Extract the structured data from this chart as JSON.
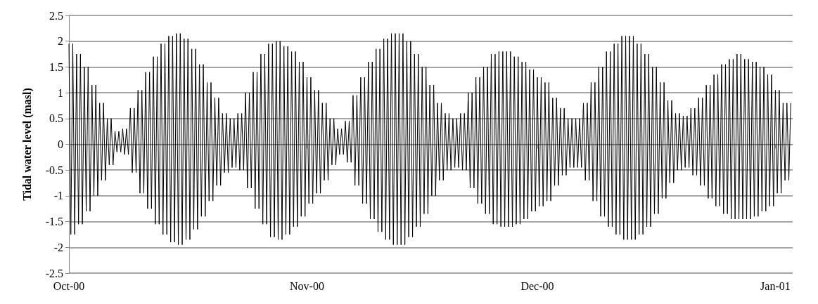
{
  "chart_data": {
    "type": "line",
    "ylabel": "Tidal water level (masl)",
    "xlim": [
      "2000-10-01T00:00",
      "2001-01-03T06:00"
    ],
    "xticks": [
      {
        "value": "2000-10-01",
        "label": "Oct-00"
      },
      {
        "value": "2000-11-01",
        "label": "Nov-00"
      },
      {
        "value": "2000-12-01",
        "label": "Dec-00"
      },
      {
        "value": "2001-01-01",
        "label": "Jan-01"
      }
    ],
    "ylim": [
      -2.5,
      2.5
    ],
    "yticks": [
      -2.5,
      -2,
      -1.5,
      -1,
      -0.5,
      0,
      0.5,
      1,
      1.5,
      2,
      2.5
    ],
    "grid": "y",
    "marker": "none",
    "line_style": "solid",
    "x": [
      "2000-10-01T00:00",
      "2000-10-01T06:00",
      "2000-10-01T12:00",
      "2000-10-01T18:00",
      "2000-10-02T00:00",
      "2000-10-02T06:00",
      "2000-10-02T12:00",
      "2000-10-02T18:00",
      "2000-10-03T00:00",
      "2000-10-03T06:00",
      "2000-10-03T12:00",
      "2000-10-03T18:00",
      "2000-10-04T00:00",
      "2000-10-04T06:00",
      "2000-10-04T12:00",
      "2000-10-04T18:00",
      "2000-10-05T00:00",
      "2000-10-05T06:00",
      "2000-10-05T12:00",
      "2000-10-05T18:00",
      "2000-10-06T00:00",
      "2000-10-06T06:00",
      "2000-10-06T12:00",
      "2000-10-06T18:00",
      "2000-10-07T00:00",
      "2000-10-07T06:00",
      "2000-10-07T12:00",
      "2000-10-07T18:00",
      "2000-10-08T00:00",
      "2000-10-08T06:00",
      "2000-10-08T12:00",
      "2000-10-08T18:00",
      "2000-10-09T00:00",
      "2000-10-09T06:00",
      "2000-10-09T12:00",
      "2000-10-09T18:00",
      "2000-10-10T00:00",
      "2000-10-10T06:00",
      "2000-10-10T12:00",
      "2000-10-10T18:00",
      "2000-10-11T00:00",
      "2000-10-11T06:00",
      "2000-10-11T12:00",
      "2000-10-11T18:00",
      "2000-10-12T00:00",
      "2000-10-12T06:00",
      "2000-10-12T12:00",
      "2000-10-12T18:00",
      "2000-10-13T00:00",
      "2000-10-13T06:00",
      "2000-10-13T12:00",
      "2000-10-13T18:00",
      "2000-10-14T00:00",
      "2000-10-14T06:00",
      "2000-10-14T12:00",
      "2000-10-14T18:00",
      "2000-10-15T00:00",
      "2000-10-15T06:00",
      "2000-10-15T12:00",
      "2000-10-15T18:00",
      "2000-10-16T00:00",
      "2000-10-16T06:00",
      "2000-10-16T12:00",
      "2000-10-16T18:00",
      "2000-10-17T00:00",
      "2000-10-17T06:00",
      "2000-10-17T12:00",
      "2000-10-17T18:00",
      "2000-10-18T00:00",
      "2000-10-18T06:00",
      "2000-10-18T12:00",
      "2000-10-18T18:00",
      "2000-10-19T00:00",
      "2000-10-19T06:00",
      "2000-10-19T12:00",
      "2000-10-19T18:00",
      "2000-10-20T00:00",
      "2000-10-20T06:00",
      "2000-10-20T12:00",
      "2000-10-20T18:00",
      "2000-10-21T00:00",
      "2000-10-21T06:00",
      "2000-10-21T12:00",
      "2000-10-21T18:00",
      "2000-10-22T00:00",
      "2000-10-22T06:00",
      "2000-10-22T12:00",
      "2000-10-22T18:00",
      "2000-10-23T00:00",
      "2000-10-23T06:00",
      "2000-10-23T12:00",
      "2000-10-23T18:00",
      "2000-10-24T00:00",
      "2000-10-24T06:00",
      "2000-10-24T12:00",
      "2000-10-24T18:00",
      "2000-10-25T00:00",
      "2000-10-25T06:00",
      "2000-10-25T12:00",
      "2000-10-25T18:00",
      "2000-10-26T00:00",
      "2000-10-26T06:00",
      "2000-10-26T12:00",
      "2000-10-26T18:00",
      "2000-10-27T00:00",
      "2000-10-27T06:00",
      "2000-10-27T12:00",
      "2000-10-27T18:00",
      "2000-10-28T00:00",
      "2000-10-28T06:00",
      "2000-10-28T12:00",
      "2000-10-28T18:00",
      "2000-10-29T00:00",
      "2000-10-29T06:00",
      "2000-10-29T12:00",
      "2000-10-29T18:00",
      "2000-10-30T00:00",
      "2000-10-30T06:00",
      "2000-10-30T12:00",
      "2000-10-30T18:00",
      "2000-10-31T00:00",
      "2000-10-31T06:00",
      "2000-10-31T12:00",
      "2000-10-31T18:00",
      "2000-11-01T00:00",
      "2000-11-01T06:00",
      "2000-11-01T12:00",
      "2000-11-01T18:00",
      "2000-11-02T00:00",
      "2000-11-02T06:00",
      "2000-11-02T12:00",
      "2000-11-02T18:00",
      "2000-11-03T00:00",
      "2000-11-03T06:00",
      "2000-11-03T12:00",
      "2000-11-03T18:00",
      "2000-11-04T00:00",
      "2000-11-04T06:00",
      "2000-11-04T12:00",
      "2000-11-04T18:00",
      "2000-11-05T00:00",
      "2000-11-05T06:00",
      "2000-11-05T12:00",
      "2000-11-05T18:00",
      "2000-11-06T00:00",
      "2000-11-06T06:00",
      "2000-11-06T12:00",
      "2000-11-06T18:00",
      "2000-11-07T00:00",
      "2000-11-07T06:00",
      "2000-11-07T12:00",
      "2000-11-07T18:00",
      "2000-11-08T00:00",
      "2000-11-08T06:00",
      "2000-11-08T12:00",
      "2000-11-08T18:00",
      "2000-11-09T00:00",
      "2000-11-09T06:00",
      "2000-11-09T12:00",
      "2000-11-09T18:00",
      "2000-11-10T00:00",
      "2000-11-10T06:00",
      "2000-11-10T12:00",
      "2000-11-10T18:00",
      "2000-11-11T00:00",
      "2000-11-11T06:00",
      "2000-11-11T12:00",
      "2000-11-11T18:00",
      "2000-11-12T00:00",
      "2000-11-12T06:00",
      "2000-11-12T12:00",
      "2000-11-12T18:00",
      "2000-11-13T00:00",
      "2000-11-13T06:00",
      "2000-11-13T12:00",
      "2000-11-13T18:00",
      "2000-11-14T00:00",
      "2000-11-14T06:00",
      "2000-11-14T12:00",
      "2000-11-14T18:00",
      "2000-11-15T00:00",
      "2000-11-15T06:00",
      "2000-11-15T12:00",
      "2000-11-15T18:00",
      "2000-11-16T00:00",
      "2000-11-16T06:00",
      "2000-11-16T12:00",
      "2000-11-16T18:00",
      "2000-11-17T00:00",
      "2000-11-17T06:00",
      "2000-11-17T12:00",
      "2000-11-17T18:00",
      "2000-11-18T00:00",
      "2000-11-18T06:00",
      "2000-11-18T12:00",
      "2000-11-18T18:00",
      "2000-11-19T00:00",
      "2000-11-19T06:00",
      "2000-11-19T12:00",
      "2000-11-19T18:00",
      "2000-11-20T00:00",
      "2000-11-20T06:00",
      "2000-11-20T12:00",
      "2000-11-20T18:00",
      "2000-11-21T00:00",
      "2000-11-21T06:00",
      "2000-11-21T12:00",
      "2000-11-21T18:00",
      "2000-11-22T00:00",
      "2000-11-22T06:00",
      "2000-11-22T12:00",
      "2000-11-22T18:00",
      "2000-11-23T00:00",
      "2000-11-23T06:00",
      "2000-11-23T12:00",
      "2000-11-23T18:00",
      "2000-11-24T00:00",
      "2000-11-24T06:00",
      "2000-11-24T12:00",
      "2000-11-24T18:00",
      "2000-11-25T00:00",
      "2000-11-25T06:00",
      "2000-11-25T12:00",
      "2000-11-25T18:00",
      "2000-11-26T00:00",
      "2000-11-26T06:00",
      "2000-11-26T12:00",
      "2000-11-26T18:00",
      "2000-11-27T00:00",
      "2000-11-27T06:00",
      "2000-11-27T12:00",
      "2000-11-27T18:00",
      "2000-11-28T00:00",
      "2000-11-28T06:00",
      "2000-11-28T12:00",
      "2000-11-28T18:00",
      "2000-11-29T00:00",
      "2000-11-29T06:00",
      "2000-11-29T12:00",
      "2000-11-29T18:00",
      "2000-11-30T00:00",
      "2000-11-30T06:00",
      "2000-11-30T12:00",
      "2000-11-30T18:00",
      "2000-12-01T00:00",
      "2000-12-01T06:00",
      "2000-12-01T12:00",
      "2000-12-01T18:00",
      "2000-12-02T00:00",
      "2000-12-02T06:00",
      "2000-12-02T12:00",
      "2000-12-02T18:00",
      "2000-12-03T00:00",
      "2000-12-03T06:00",
      "2000-12-03T12:00",
      "2000-12-03T18:00",
      "2000-12-04T00:00",
      "2000-12-04T06:00",
      "2000-12-04T12:00",
      "2000-12-04T18:00",
      "2000-12-05T00:00",
      "2000-12-05T06:00",
      "2000-12-05T12:00",
      "2000-12-05T18:00",
      "2000-12-06T00:00",
      "2000-12-06T06:00",
      "2000-12-06T12:00",
      "2000-12-06T18:00",
      "2000-12-07T00:00",
      "2000-12-07T06:00",
      "2000-12-07T12:00",
      "2000-12-07T18:00",
      "2000-12-08T00:00",
      "2000-12-08T06:00",
      "2000-12-08T12:00",
      "2000-12-08T18:00",
      "2000-12-09T00:00",
      "2000-12-09T06:00",
      "2000-12-09T12:00",
      "2000-12-09T18:00",
      "2000-12-10T00:00",
      "2000-12-10T06:00",
      "2000-12-10T12:00",
      "2000-12-10T18:00",
      "2000-12-11T00:00",
      "2000-12-11T06:00",
      "2000-12-11T12:00",
      "2000-12-11T18:00",
      "2000-12-12T00:00",
      "2000-12-12T06:00",
      "2000-12-12T12:00",
      "2000-12-12T18:00",
      "2000-12-13T00:00",
      "2000-12-13T06:00",
      "2000-12-13T12:00",
      "2000-12-13T18:00",
      "2000-12-14T00:00",
      "2000-12-14T06:00",
      "2000-12-14T12:00",
      "2000-12-14T18:00",
      "2000-12-15T00:00",
      "2000-12-15T06:00",
      "2000-12-15T12:00",
      "2000-12-15T18:00",
      "2000-12-16T00:00",
      "2000-12-16T06:00",
      "2000-12-16T12:00",
      "2000-12-16T18:00",
      "2000-12-17T00:00",
      "2000-12-17T06:00",
      "2000-12-17T12:00",
      "2000-12-17T18:00",
      "2000-12-18T00:00",
      "2000-12-18T06:00",
      "2000-12-18T12:00",
      "2000-12-18T18:00",
      "2000-12-19T00:00",
      "2000-12-19T06:00",
      "2000-12-19T12:00",
      "2000-12-19T18:00",
      "2000-12-20T00:00",
      "2000-12-20T06:00",
      "2000-12-20T12:00",
      "2000-12-20T18:00",
      "2000-12-21T00:00",
      "2000-12-21T06:00",
      "2000-12-21T12:00",
      "2000-12-21T18:00",
      "2000-12-22T00:00",
      "2000-12-22T06:00",
      "2000-12-22T12:00",
      "2000-12-22T18:00",
      "2000-12-23T00:00",
      "2000-12-23T06:00",
      "2000-12-23T12:00",
      "2000-12-23T18:00",
      "2000-12-24T00:00",
      "2000-12-24T06:00",
      "2000-12-24T12:00",
      "2000-12-24T18:00",
      "2000-12-25T00:00",
      "2000-12-25T06:00",
      "2000-12-25T12:00",
      "2000-12-25T18:00",
      "2000-12-26T00:00",
      "2000-12-26T06:00",
      "2000-12-26T12:00",
      "2000-12-26T18:00",
      "2000-12-27T00:00",
      "2000-12-27T06:00",
      "2000-12-27T12:00",
      "2000-12-27T18:00",
      "2000-12-28T00:00",
      "2000-12-28T06:00",
      "2000-12-28T12:00",
      "2000-12-28T18:00",
      "2000-12-29T00:00",
      "2000-12-29T06:00",
      "2000-12-29T12:00",
      "2000-12-29T18:00",
      "2000-12-30T00:00",
      "2000-12-30T06:00",
      "2000-12-30T12:00",
      "2000-12-30T18:00",
      "2000-12-31T00:00",
      "2000-12-31T06:00",
      "2000-12-31T12:00",
      "2000-12-31T18:00",
      "2001-01-01T00:00",
      "2001-01-01T06:00",
      "2001-01-01T12:00",
      "2001-01-01T18:00",
      "2001-01-02T00:00",
      "2001-01-02T06:00",
      "2001-01-02T12:00",
      "2001-01-02T18:00",
      "2001-01-03T00:00"
    ],
    "series": [
      {
        "color": "#000000",
        "values": [
          1.95,
          -1.75,
          1.95,
          -1.75,
          1.75,
          -1.55,
          1.75,
          -1.55,
          1.5,
          -1.3,
          1.5,
          -1.3,
          1.15,
          -1.0,
          1.15,
          -1.0,
          0.8,
          -0.7,
          0.8,
          -0.7,
          0.5,
          -0.4,
          0.5,
          -0.4,
          0.25,
          -0.15,
          0.25,
          -0.15,
          0.3,
          -0.2,
          0.3,
          -0.2,
          0.7,
          -0.55,
          0.7,
          -0.55,
          1.05,
          -0.95,
          1.05,
          -0.95,
          1.4,
          -1.25,
          1.4,
          -1.25,
          1.7,
          -1.55,
          1.7,
          -1.55,
          1.95,
          -1.75,
          1.95,
          -1.75,
          2.1,
          -1.9,
          2.1,
          -1.9,
          2.15,
          -1.95,
          2.15,
          -1.95,
          2.05,
          -1.85,
          2.05,
          -1.85,
          1.85,
          -1.65,
          1.85,
          -1.65,
          1.55,
          -1.4,
          1.55,
          -1.4,
          1.2,
          -1.1,
          1.2,
          -1.1,
          0.9,
          -0.8,
          0.9,
          -0.8,
          0.6,
          -0.55,
          0.6,
          -0.55,
          0.5,
          -0.45,
          0.5,
          -0.45,
          0.6,
          -0.5,
          0.6,
          -0.5,
          1.0,
          -0.85,
          1.0,
          -0.85,
          1.4,
          -1.25,
          1.4,
          -1.25,
          1.75,
          -1.55,
          1.75,
          -1.55,
          1.95,
          -1.8,
          1.95,
          -1.8,
          2.0,
          -1.85,
          2.0,
          -1.85,
          1.9,
          -1.75,
          1.9,
          -1.75,
          1.8,
          -1.6,
          1.8,
          -1.6,
          1.6,
          -1.4,
          1.6,
          -1.4,
          1.3,
          -1.15,
          1.3,
          -1.15,
          1.05,
          -0.95,
          1.05,
          -0.95,
          0.8,
          -0.7,
          0.8,
          -0.7,
          0.5,
          -0.4,
          0.5,
          -0.4,
          0.3,
          -0.2,
          0.3,
          -0.2,
          0.45,
          -0.35,
          0.45,
          -0.35,
          0.95,
          -0.8,
          0.95,
          -0.8,
          1.3,
          -1.15,
          1.3,
          -1.15,
          1.6,
          -1.45,
          1.6,
          -1.45,
          1.85,
          -1.7,
          1.85,
          -1.7,
          2.05,
          -1.85,
          2.05,
          -1.85,
          2.15,
          -1.95,
          2.15,
          -1.95,
          2.15,
          -1.95,
          2.15,
          -1.95,
          2.0,
          -1.8,
          2.0,
          -1.8,
          1.75,
          -1.6,
          1.75,
          -1.6,
          1.5,
          -1.35,
          1.5,
          -1.35,
          1.15,
          -1.0,
          1.15,
          -1.0,
          0.8,
          -0.7,
          0.8,
          -0.7,
          0.6,
          -0.5,
          0.6,
          -0.5,
          0.5,
          -0.45,
          0.5,
          -0.45,
          0.6,
          -0.5,
          0.6,
          -0.5,
          1.0,
          -0.85,
          1.0,
          -0.85,
          1.3,
          -1.15,
          1.3,
          -1.15,
          1.5,
          -1.35,
          1.5,
          -1.35,
          1.75,
          -1.55,
          1.75,
          -1.55,
          1.8,
          -1.6,
          1.8,
          -1.6,
          1.8,
          -1.6,
          1.8,
          -1.6,
          1.7,
          -1.55,
          1.7,
          -1.55,
          1.6,
          -1.45,
          1.6,
          -1.45,
          1.45,
          -1.3,
          1.45,
          -1.3,
          1.3,
          -1.2,
          1.3,
          -1.2,
          1.2,
          -1.1,
          1.2,
          -1.1,
          0.9,
          -0.8,
          0.9,
          -0.8,
          0.7,
          -0.6,
          0.7,
          -0.6,
          0.5,
          -0.45,
          0.5,
          -0.45,
          0.5,
          -0.45,
          0.5,
          -0.45,
          0.8,
          -0.7,
          0.8,
          -0.7,
          1.2,
          -1.1,
          1.2,
          -1.1,
          1.5,
          -1.4,
          1.5,
          -1.4,
          1.8,
          -1.6,
          1.8,
          -1.6,
          1.95,
          -1.75,
          1.95,
          -1.75,
          2.1,
          -1.85,
          2.1,
          -1.85,
          2.1,
          -1.85,
          2.1,
          -1.85,
          1.95,
          -1.75,
          1.95,
          -1.75,
          1.75,
          -1.6,
          1.75,
          -1.6,
          1.5,
          -1.35,
          1.5,
          -1.35,
          1.2,
          -1.05,
          1.2,
          -1.05,
          0.85,
          -0.75,
          0.85,
          -0.75,
          0.6,
          -0.5,
          0.6,
          -0.5,
          0.55,
          -0.45,
          0.55,
          -0.45,
          0.7,
          -0.6,
          0.7,
          -0.6,
          0.9,
          -0.8,
          0.9,
          -0.8,
          1.15,
          -1.05,
          1.15,
          -1.05,
          1.35,
          -1.2,
          1.35,
          -1.2,
          1.55,
          -1.35,
          1.55,
          -1.35,
          1.65,
          -1.45,
          1.65,
          -1.45,
          1.75,
          -1.45,
          1.75,
          -1.45,
          1.65,
          -1.45,
          1.65,
          -1.45,
          1.6,
          -1.4,
          1.6,
          -1.4,
          1.5,
          -1.3,
          1.5,
          -1.3,
          1.35,
          -1.2,
          1.35,
          -1.2,
          1.05,
          -0.95,
          1.05,
          -0.95,
          0.8,
          -0.7,
          0.8,
          -0.7,
          0.8
        ]
      }
    ]
  }
}
